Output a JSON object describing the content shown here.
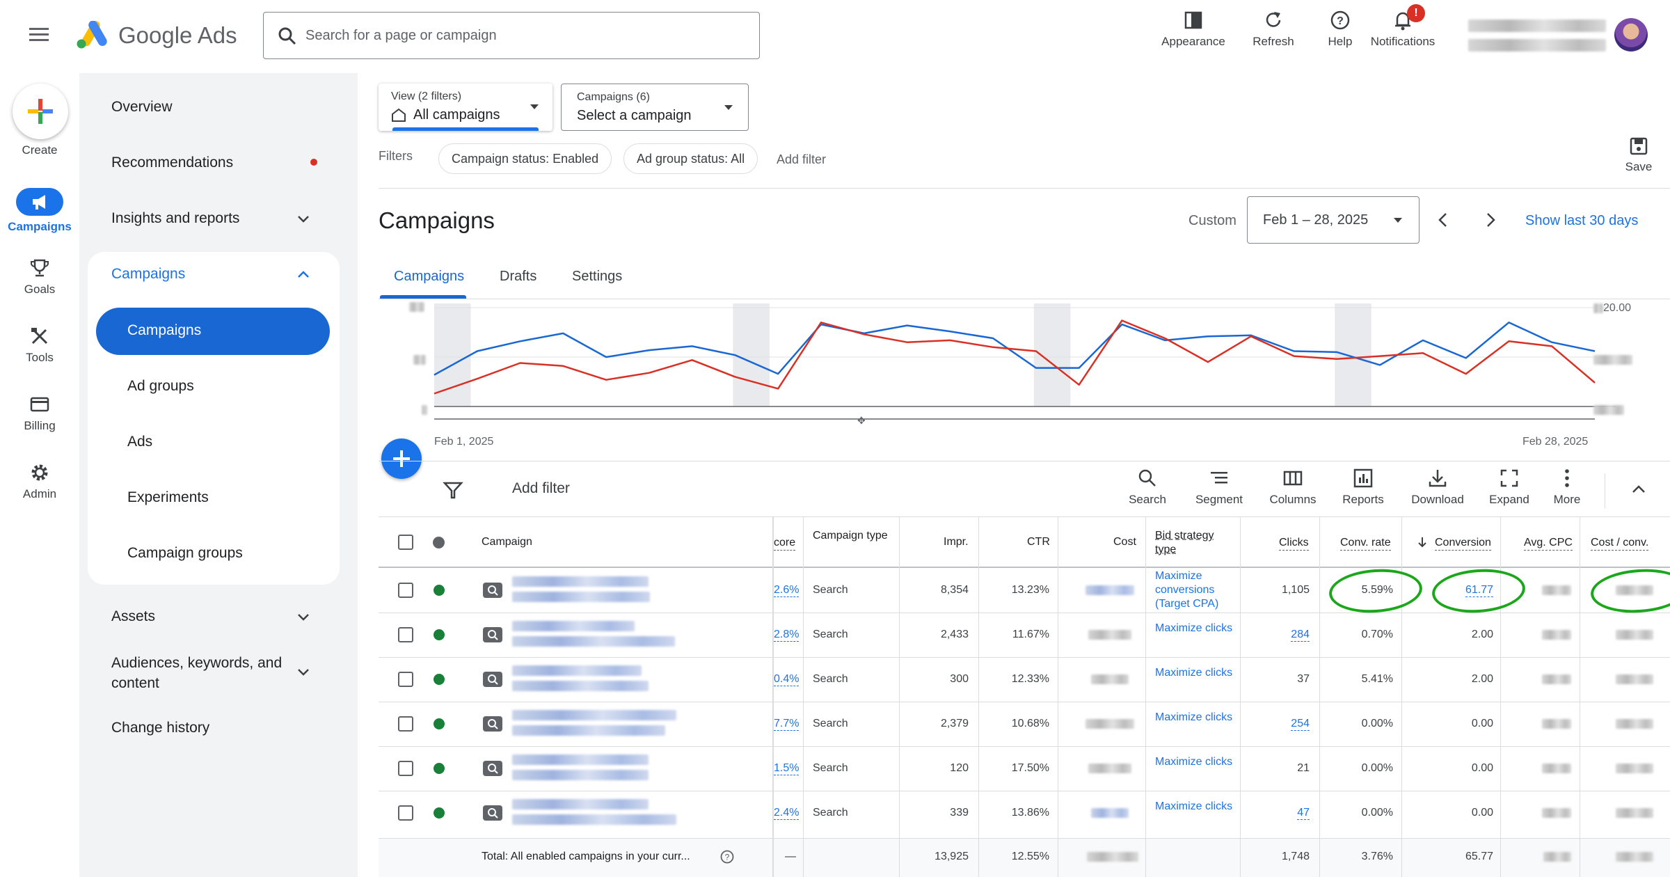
{
  "app": {
    "name": "Google Ads"
  },
  "search": {
    "placeholder": "Search for a page or campaign"
  },
  "top_actions": {
    "appearance": "Appearance",
    "refresh": "Refresh",
    "help": "Help",
    "notifications": "Notifications",
    "notif_badge": "!"
  },
  "rail": {
    "create": "Create",
    "campaigns": "Campaigns",
    "goals": "Goals",
    "tools": "Tools",
    "billing": "Billing",
    "admin": "Admin"
  },
  "nav": {
    "overview": "Overview",
    "recommendations": "Recommendations",
    "insights": "Insights and reports",
    "campaigns_group": "Campaigns",
    "campaigns": "Campaigns",
    "ad_groups": "Ad groups",
    "ads": "Ads",
    "experiments": "Experiments",
    "campaign_groups": "Campaign groups",
    "assets": "Assets",
    "audiences": "Audiences, keywords, and content",
    "change_history": "Change history"
  },
  "view_select": {
    "label": "View (2 filters)",
    "value": "All campaigns"
  },
  "campaign_select": {
    "label": "Campaigns (6)",
    "value": "Select a campaign"
  },
  "filters": {
    "label": "Filters",
    "chip1": "Campaign status: Enabled",
    "chip2": "Ad group status: All",
    "add": "Add filter",
    "save": "Save"
  },
  "page": {
    "title": "Campaigns",
    "range_label": "Custom",
    "date_range": "Feb 1 – 28, 2025",
    "show_last": "Show last 30 days"
  },
  "tabs": [
    "Campaigns",
    "Drafts",
    "Settings"
  ],
  "chart": {
    "start_label": "Feb 1, 2025",
    "end_label": "Feb 28, 2025",
    "right_tick": "20.00"
  },
  "chart_data": {
    "type": "line",
    "x": [
      1,
      2,
      3,
      4,
      5,
      6,
      7,
      8,
      9,
      10,
      11,
      12,
      13,
      14,
      15,
      16,
      17,
      18,
      19,
      20,
      21,
      22,
      23,
      24,
      25,
      26,
      27,
      28
    ],
    "series": [
      {
        "color": "#1967d2",
        "values": [
          0.32,
          0.56,
          0.66,
          0.74,
          0.5,
          0.57,
          0.61,
          0.52,
          0.33,
          0.83,
          0.74,
          0.82,
          0.76,
          0.69,
          0.39,
          0.39,
          0.83,
          0.67,
          0.71,
          0.72,
          0.56,
          0.55,
          0.42,
          0.67,
          0.49,
          0.85,
          0.65,
          0.56
        ]
      },
      {
        "color": "#d93025",
        "values": [
          0.13,
          0.28,
          0.44,
          0.41,
          0.27,
          0.34,
          0.47,
          0.3,
          0.18,
          0.85,
          0.73,
          0.65,
          0.67,
          0.6,
          0.56,
          0.22,
          0.87,
          0.69,
          0.45,
          0.71,
          0.51,
          0.48,
          0.51,
          0.54,
          0.33,
          0.66,
          0.61,
          0.24
        ]
      }
    ]
  },
  "toolbar": {
    "add_filter": "Add filter",
    "search": "Search",
    "segment": "Segment",
    "columns": "Columns",
    "reports": "Reports",
    "download": "Download",
    "expand": "Expand",
    "more": "More"
  },
  "table": {
    "headers": {
      "campaign": "Campaign",
      "score": "core",
      "type": "Campaign type",
      "impr": "Impr.",
      "ctr": "CTR",
      "cost": "Cost",
      "bid": "Bid strategy type",
      "clicks": "Clicks",
      "conv_rate": "Conv. rate",
      "conversions": "Conversion",
      "avg_cpc": "Avg. CPC",
      "cost_conv": "Cost / conv."
    },
    "rows": [
      {
        "score": "2.6%",
        "type": "Search",
        "impr": "8,354",
        "ctr": "13.23%",
        "bid": "Maximize conversions (Target CPA)",
        "clicks": "1,105",
        "conv_rate": "5.59%",
        "conversions": "61.77"
      },
      {
        "score": "2.8%",
        "type": "Search",
        "impr": "2,433",
        "ctr": "11.67%",
        "bid": "Maximize clicks",
        "clicks": "284",
        "conv_rate": "0.70%",
        "conversions": "2.00"
      },
      {
        "score": "0.4%",
        "type": "Search",
        "impr": "300",
        "ctr": "12.33%",
        "bid": "Maximize clicks",
        "clicks": "37",
        "conv_rate": "5.41%",
        "conversions": "2.00"
      },
      {
        "score": "7.7%",
        "type": "Search",
        "impr": "2,379",
        "ctr": "10.68%",
        "bid": "Maximize clicks",
        "clicks": "254",
        "conv_rate": "0.00%",
        "conversions": "0.00"
      },
      {
        "score": "1.5%",
        "type": "Search",
        "impr": "120",
        "ctr": "17.50%",
        "bid": "Maximize clicks",
        "clicks": "21",
        "conv_rate": "0.00%",
        "conversions": "0.00"
      },
      {
        "score": "2.4%",
        "type": "Search",
        "impr": "339",
        "ctr": "13.86%",
        "bid": "Maximize clicks",
        "clicks": "47",
        "conv_rate": "0.00%",
        "conversions": "0.00"
      }
    ],
    "total": {
      "label": "Total: All enabled campaigns in your curr...",
      "score": "—",
      "impr": "13,925",
      "ctr": "12.55%",
      "clicks": "1,748",
      "conv_rate": "3.76%",
      "conversions": "65.77"
    }
  }
}
